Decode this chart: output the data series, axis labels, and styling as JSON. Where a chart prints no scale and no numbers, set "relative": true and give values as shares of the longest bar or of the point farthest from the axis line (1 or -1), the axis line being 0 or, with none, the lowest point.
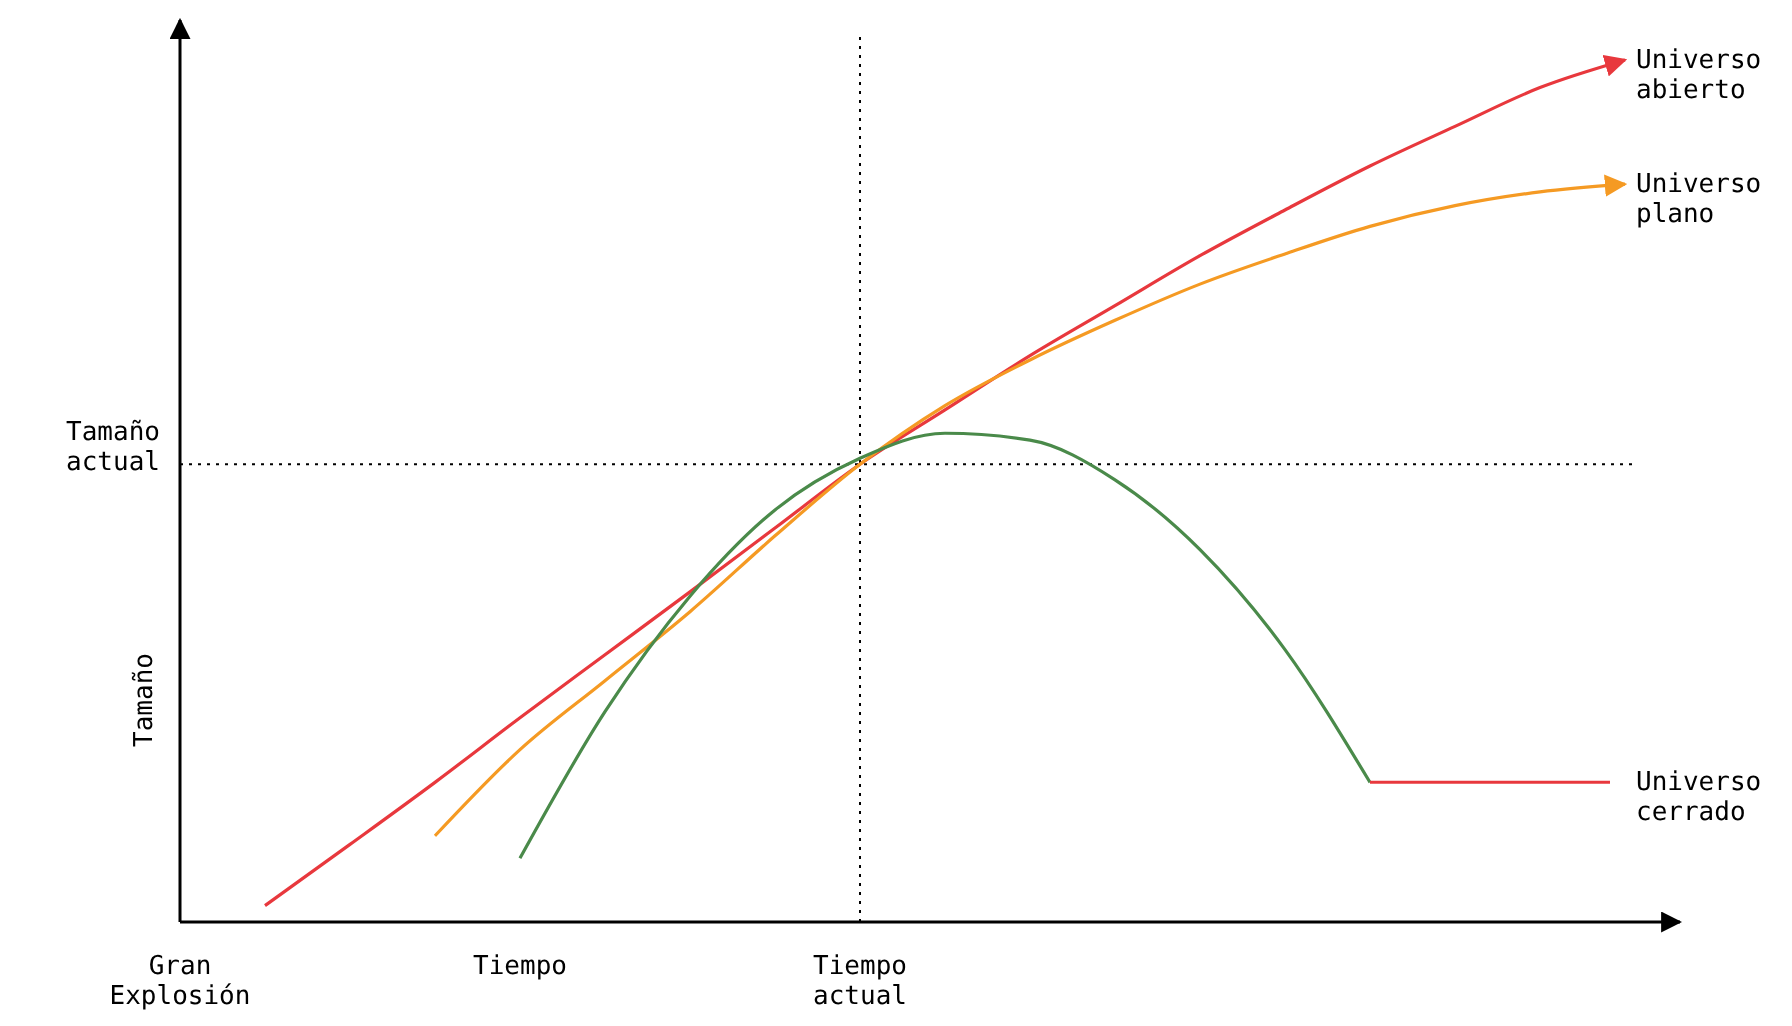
{
  "chart_data": {
    "type": "line",
    "relative": true,
    "ylabel": "Tamaño",
    "categories": [
      "Gran Explosión",
      null,
      null,
      null,
      "Tiempo",
      null,
      null,
      null,
      "Tiempo actual",
      null,
      null,
      null,
      null,
      null,
      null,
      null,
      null,
      null
    ],
    "series": [
      {
        "name": "Universo abierto",
        "color": "#e8383d",
        "values": [
          null,
          0.019,
          0.09,
          0.162,
          0.237,
          0.31,
          0.383,
          0.457,
          0.531,
          0.594,
          0.657,
          0.715,
          0.773,
          0.826,
          0.877,
          0.923,
          0.968,
          1
        ]
      },
      {
        "name": "Universo plano",
        "color": "#f59a23",
        "values": [
          null,
          null,
          null,
          0.1,
          0.2,
          0.28,
          0.36,
          0.448,
          0.531,
          0.599,
          0.652,
          0.698,
          0.74,
          0.775,
          0.807,
          0.831,
          0.847,
          0.856
        ]
      },
      {
        "name": "Universo cerrado",
        "color": "#4a8a4a",
        "values": [
          null,
          null,
          null,
          null,
          0.074,
          0.244,
          0.378,
          0.478,
          0.538,
          0.567,
          0.559,
          0.513,
          0.432,
          0.316,
          0.162,
          null,
          null,
          null
        ]
      }
    ],
    "ref_lines": [
      {
        "axis": "y",
        "value": 0.531,
        "label": "Tamaño actual"
      },
      {
        "axis": "x",
        "value": "Tiempo actual",
        "label": null
      }
    ]
  }
}
